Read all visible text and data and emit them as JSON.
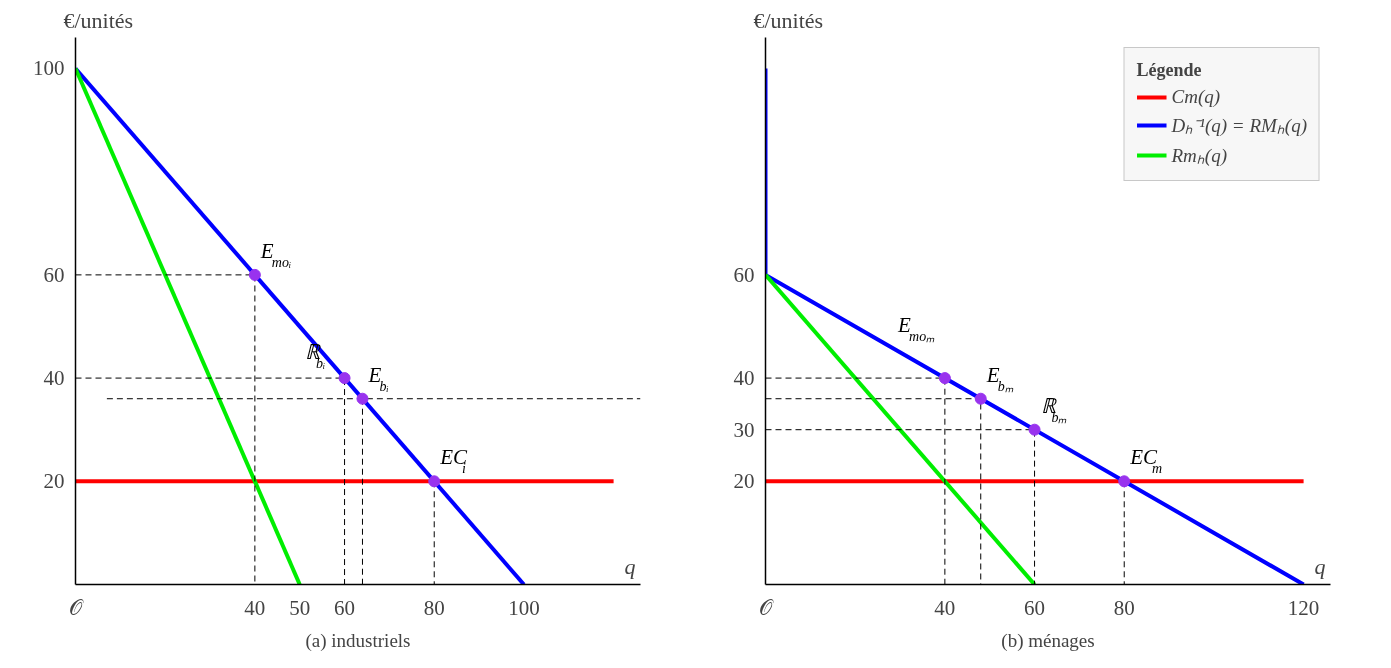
{
  "chart_data": [
    {
      "type": "line",
      "title": "(a) industriels",
      "xlabel": "q",
      "ylabel": "€/unités",
      "xlim": [
        0,
        126
      ],
      "ylim": [
        0,
        106
      ],
      "xticks": [
        {
          "value": 0,
          "label": "𝒪"
        },
        40,
        50,
        60,
        80,
        100
      ],
      "yticks": [
        20,
        40,
        60,
        100
      ],
      "grid": false,
      "legend": false,
      "series": [
        {
          "color": "#ff0000",
          "x": [
            0,
            120
          ],
          "values": [
            20,
            20
          ]
        },
        {
          "color": "#0000ff",
          "x": [
            0,
            100
          ],
          "values": [
            100,
            0
          ]
        },
        {
          "color": "#00ee00",
          "x": [
            0,
            50
          ],
          "values": [
            100,
            0
          ]
        },
        {
          "color": "#000000",
          "line_style": "dashed",
          "x": [
            0,
            40,
            40
          ],
          "values": [
            60,
            60,
            0
          ]
        },
        {
          "color": "#000000",
          "line_style": "dashed",
          "x": [
            0,
            60,
            60
          ],
          "values": [
            40,
            40,
            0
          ]
        },
        {
          "color": "#000000",
          "line_style": "dashed",
          "x": [
            7,
            126
          ],
          "values": [
            36,
            36
          ]
        },
        {
          "color": "#000000",
          "line_style": "dashed",
          "x": [
            64,
            64
          ],
          "values": [
            36,
            0
          ]
        },
        {
          "color": "#000000",
          "line_style": "dashed",
          "x": [
            80,
            80
          ],
          "values": [
            20,
            0
          ]
        },
        {
          "type": "scatter",
          "marker": "circle",
          "color": "#9933ee",
          "x": [
            40,
            60,
            64,
            80
          ],
          "values": [
            60,
            40,
            36,
            20
          ]
        }
      ],
      "annotations": [
        {
          "text": "E$_{moᵢ}$",
          "x": 40,
          "y": 60
        },
        {
          "text": "ℝ$_{bᵢ}$",
          "x": 60,
          "y": 40
        },
        {
          "text": "E$_{bᵢ}$",
          "x": 64,
          "y": 36
        },
        {
          "text": "EC$_{i}$",
          "x": 80,
          "y": 20
        }
      ]
    },
    {
      "type": "line",
      "title": "(b) ménages",
      "xlabel": "q",
      "ylabel": "€/unités",
      "xlim": [
        0,
        126
      ],
      "ylim": [
        0,
        106
      ],
      "xticks": [
        {
          "value": 0,
          "label": "𝒪"
        },
        40,
        60,
        80,
        120
      ],
      "yticks": [
        20,
        30,
        40,
        60
      ],
      "grid": false,
      "legend": "top right",
      "legend_title": "Légende",
      "series": [
        {
          "name": "Cm(q)",
          "color": "#ff0000",
          "x": [
            0,
            120
          ],
          "values": [
            20,
            20
          ]
        },
        {
          "name": "Dₕ⁻¹(q) = RMₕ(q)",
          "color": "#0000ff",
          "x": [
            0,
            0,
            120
          ],
          "values": [
            100,
            60,
            0
          ]
        },
        {
          "name": "Rmₕ(q)",
          "color": "#00ee00",
          "x": [
            0,
            60
          ],
          "values": [
            60,
            0
          ]
        },
        {
          "color": "#000000",
          "line_style": "dashed",
          "x": [
            0,
            40,
            40
          ],
          "values": [
            40,
            40,
            0
          ]
        },
        {
          "color": "#000000",
          "line_style": "dashed",
          "x": [
            0,
            48,
            48
          ],
          "values": [
            36,
            36,
            0
          ]
        },
        {
          "color": "#000000",
          "line_style": "dashed",
          "x": [
            0,
            60,
            60
          ],
          "values": [
            30,
            30,
            0
          ]
        },
        {
          "color": "#000000",
          "line_style": "dashed",
          "x": [
            80,
            80
          ],
          "values": [
            20,
            0
          ]
        },
        {
          "type": "scatter",
          "marker": "circle",
          "color": "#9933ee",
          "x": [
            40,
            48,
            60,
            80
          ],
          "values": [
            40,
            36,
            30,
            20
          ]
        }
      ],
      "annotations": [
        {
          "text": "E$_{moₘ}$",
          "x": 40,
          "y": 40
        },
        {
          "text": "E$_{bₘ}$",
          "x": 48,
          "y": 36
        },
        {
          "text": "ℝ$_{bₘ}$",
          "x": 60,
          "y": 30
        },
        {
          "text": "EC$_{m}$",
          "x": 80,
          "y": 20
        }
      ]
    }
  ]
}
